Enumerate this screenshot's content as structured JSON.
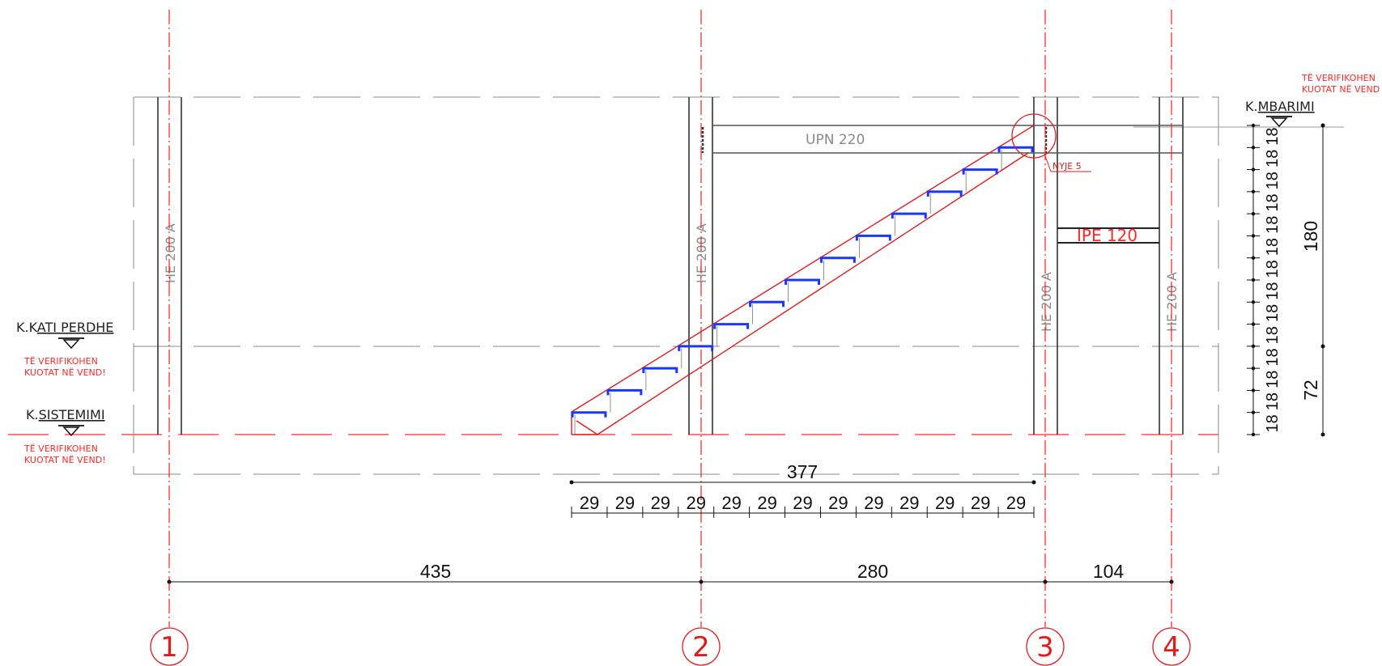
{
  "grid_axes": [
    {
      "label": "1"
    },
    {
      "label": "2"
    },
    {
      "label": "3"
    },
    {
      "label": "4"
    }
  ],
  "levels": {
    "mbarimi": {
      "prefix": "K.",
      "name": "MBARIMI"
    },
    "kati_perdhe": {
      "prefix": "K.K",
      "name": "ATI PERDHE"
    },
    "sistemimi": {
      "prefix": "K.",
      "name": "SISTEMIMI"
    }
  },
  "notes": {
    "verify_line1": "TË VERIFIKOHEN",
    "verify_line2": "KUOTAT NË VEND!",
    "verify_top_line2": "KUOTAT NË VEND"
  },
  "sections": {
    "column": "HE 200 A",
    "top_beam": "UPN 220",
    "small_beam": "IPE 120",
    "node": "NYJE 5"
  },
  "dimensions": {
    "stair_total": "377",
    "tread": "29",
    "tread_count": 13,
    "riser": "18",
    "riser_count": 14,
    "axis_1_2": "435",
    "axis_2_3": "280",
    "axis_3_4": "104",
    "height_upper": "180",
    "height_lower": "72"
  },
  "colors": {
    "axis": "#ff1a1a",
    "steel": "#333333",
    "stair": "#e21b1b",
    "tread": "#1a37ff",
    "note": "#ff2a2a"
  }
}
